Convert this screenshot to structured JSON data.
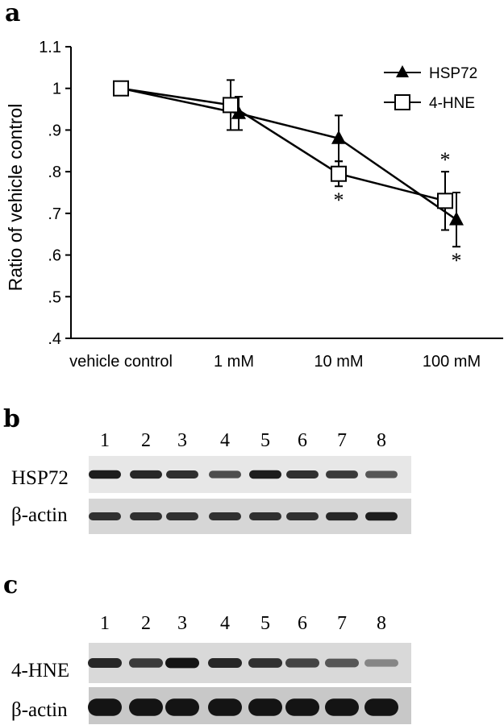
{
  "panels": {
    "a": "a",
    "b": "b",
    "c": "c"
  },
  "chart_data": {
    "type": "line",
    "title": "",
    "xlabel": "",
    "ylabel": "Ratio of vehicle control",
    "categories": [
      "vehicle control",
      "1 mM",
      "10 mM",
      "100 mM"
    ],
    "ylim": [
      0.4,
      1.1
    ],
    "yticks": [
      ".4",
      ".5",
      ".6",
      ".7",
      ".8",
      ".9",
      "1",
      "1.1"
    ],
    "grid": false,
    "legend_position": "top-right",
    "series": [
      {
        "name": "HSP72",
        "marker": "filled-triangle",
        "values": [
          1.0,
          0.94,
          0.88,
          0.685
        ],
        "errors": [
          0.0,
          0.04,
          0.055,
          0.065
        ],
        "significant": [
          false,
          false,
          false,
          true
        ]
      },
      {
        "name": "4-HNE",
        "marker": "open-square",
        "values": [
          1.0,
          0.96,
          0.795,
          0.73
        ],
        "errors": [
          0.0,
          0.06,
          0.03,
          0.07
        ],
        "significant": [
          false,
          false,
          true,
          true
        ]
      }
    ],
    "significance_marker": "*"
  },
  "blots": {
    "b": {
      "lanes": [
        "1",
        "2",
        "3",
        "4",
        "5",
        "6",
        "7",
        "8"
      ],
      "rows": [
        {
          "label": "HSP72",
          "intensity": [
            0.9,
            0.85,
            0.8,
            0.65,
            0.9,
            0.8,
            0.75,
            0.6
          ]
        },
        {
          "label": "β-actin",
          "intensity": [
            0.8,
            0.8,
            0.8,
            0.8,
            0.8,
            0.8,
            0.85,
            0.9
          ]
        }
      ]
    },
    "c": {
      "lanes": [
        "1",
        "2",
        "3",
        "4",
        "5",
        "6",
        "7",
        "8"
      ],
      "rows": [
        {
          "label": "4-HNE",
          "intensity": [
            0.85,
            0.75,
            0.95,
            0.85,
            0.8,
            0.7,
            0.6,
            0.35
          ]
        },
        {
          "label": "β-actin",
          "intensity": [
            0.95,
            0.95,
            0.95,
            0.95,
            0.95,
            0.95,
            0.95,
            0.95
          ]
        }
      ]
    }
  }
}
